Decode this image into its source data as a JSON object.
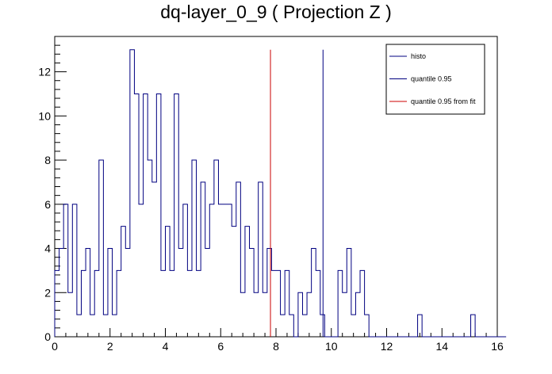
{
  "chart_data": {
    "type": "histogram",
    "title": "dq-layer_0_9 ( Projection Z )",
    "xlabel": "",
    "ylabel": "",
    "xlim": [
      0,
      16
    ],
    "ylim": [
      0,
      13.6
    ],
    "bin_width": 0.16,
    "x_ticks": [
      0,
      2,
      4,
      6,
      8,
      10,
      12,
      14,
      16
    ],
    "y_ticks": [
      0,
      2,
      4,
      6,
      8,
      10,
      12
    ],
    "grid": false,
    "legend_position": "top-right",
    "series": [
      {
        "name": "histo",
        "color": "#000080",
        "bin_start": 0,
        "bin_values": [
          3,
          4,
          6,
          2,
          6,
          1,
          3,
          4,
          1,
          3,
          8,
          1,
          4,
          1,
          3,
          5,
          4,
          13,
          11,
          6,
          11,
          8,
          7,
          11,
          3,
          5,
          3,
          11,
          4,
          6,
          3,
          8,
          3,
          7,
          4,
          6,
          8,
          6,
          6,
          6,
          5,
          7,
          2,
          5,
          4,
          2,
          7,
          2,
          4,
          3,
          3,
          1,
          3,
          1,
          0,
          2,
          1,
          2,
          4,
          3,
          1,
          0,
          0,
          0,
          3,
          2,
          4,
          1,
          2,
          3,
          1,
          0,
          0,
          0,
          0,
          0,
          0,
          0,
          0,
          0,
          0,
          0,
          1,
          0,
          0,
          0,
          0,
          0,
          0,
          0,
          0,
          0,
          0,
          0,
          1,
          0,
          0,
          0,
          0,
          0,
          0,
          0
        ]
      }
    ],
    "vertical_lines": [
      {
        "name": "quantile 0.95",
        "x": 9.7,
        "y_top": 13,
        "color": "#000080"
      },
      {
        "name": "quantile 0.95 from fit",
        "x": 7.8,
        "y_top": 13,
        "color": "#cc0000"
      }
    ],
    "legend": [
      "histo",
      "quantile 0.95",
      "quantile 0.95 from fit"
    ]
  }
}
